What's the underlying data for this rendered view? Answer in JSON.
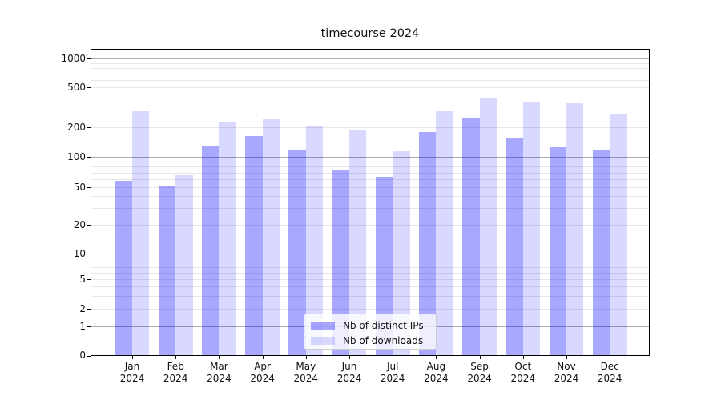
{
  "chart_data": {
    "type": "bar",
    "title": "timecourse 2024",
    "categories": [
      "Jan 2024",
      "Feb 2024",
      "Mar 2024",
      "Apr 2024",
      "May 2024",
      "Jun 2024",
      "Jul 2024",
      "Aug 2024",
      "Sep 2024",
      "Oct 2024",
      "Nov 2024",
      "Dec 2024"
    ],
    "series": [
      {
        "name": "Nb of distinct IPs",
        "color": "#aaaaff",
        "fill": "rgba(0,0,255,0.34)",
        "values": [
          58,
          51,
          130,
          165,
          117,
          73,
          63,
          180,
          245,
          158,
          125,
          116
        ]
      },
      {
        "name": "Nb of downloads",
        "color": "#d9d9ff",
        "fill": "rgba(0,0,255,0.15)",
        "values": [
          290,
          66,
          225,
          240,
          205,
          190,
          115,
          290,
          400,
          360,
          350,
          270
        ]
      }
    ],
    "yscale": "symlog",
    "ylabel": "",
    "xlabel": "",
    "y_ticks": [
      0,
      1,
      2,
      5,
      10,
      20,
      50,
      100,
      200,
      500,
      1000
    ],
    "y_major_gridlines": [
      1,
      10,
      100,
      1000
    ],
    "y_minor_gridlines": [
      2,
      3,
      4,
      5,
      6,
      7,
      8,
      9,
      20,
      30,
      40,
      50,
      60,
      70,
      80,
      90,
      200,
      300,
      400,
      500,
      600,
      700,
      800,
      900
    ],
    "ylim": [
      0,
      1300
    ],
    "grid": "horizontal",
    "legend_position": "lower center"
  },
  "colors": {
    "grid_major": "#ababab",
    "grid_minor": "#e7e7e7",
    "axis": "#000000",
    "text": "#111111",
    "legend_border": "#cccccc",
    "background": "#ffffff"
  }
}
